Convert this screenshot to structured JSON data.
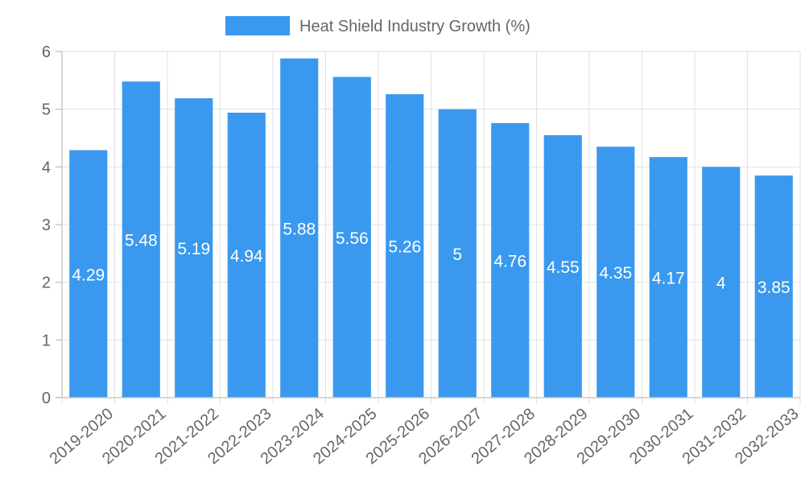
{
  "chart_data": {
    "type": "bar",
    "title": "",
    "xlabel": "",
    "ylabel": "",
    "legend": {
      "label": "Heat Shield Industry Growth (%)",
      "color": "#3a99ee",
      "position": "top-center"
    },
    "categories": [
      "2019-2020",
      "2020-2021",
      "2021-2022",
      "2022-2023",
      "2023-2024",
      "2024-2025",
      "2025-2026",
      "2026-2027",
      "2027-2028",
      "2028-2029",
      "2029-2030",
      "2030-2031",
      "2031-2032",
      "2032-2033"
    ],
    "series": [
      {
        "name": "Heat Shield Industry Growth (%)",
        "values": [
          4.29,
          5.48,
          5.19,
          4.94,
          5.88,
          5.56,
          5.26,
          5,
          4.76,
          4.55,
          4.35,
          4.17,
          4,
          3.85
        ]
      }
    ],
    "data_labels": [
      "4.29",
      "5.48",
      "5.19",
      "4.94",
      "5.88",
      "5.56",
      "5.26",
      "5",
      "4.76",
      "4.55",
      "4.35",
      "4.17",
      "4",
      "3.85"
    ],
    "ylim": [
      0,
      6
    ],
    "yticks": [
      "0",
      "1",
      "2",
      "3",
      "4",
      "5",
      "6"
    ],
    "grid": true,
    "bar_color": "#3a99ee"
  }
}
